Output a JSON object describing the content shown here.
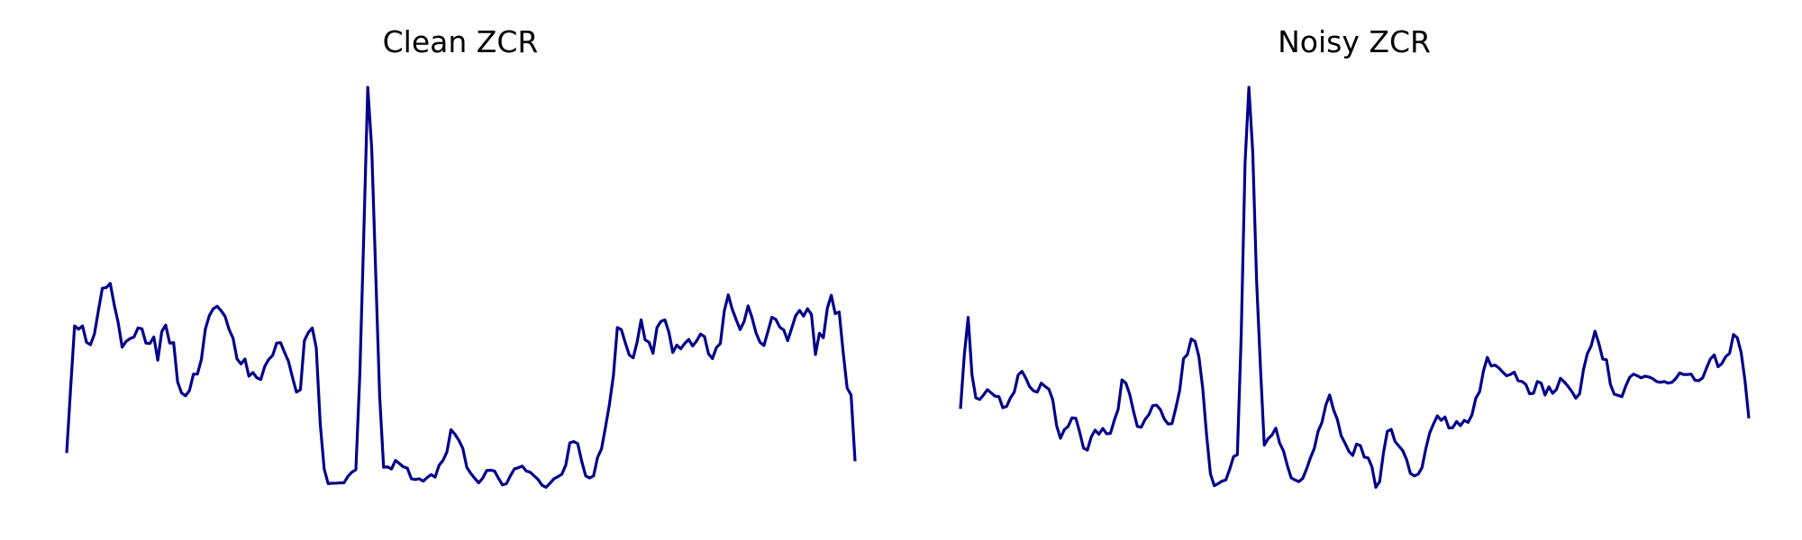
{
  "figure": {
    "background": "#ffffff",
    "line_color": "#00008b"
  },
  "chart_data": [
    {
      "type": "line",
      "title": "Clean ZCR",
      "axes_visible": false,
      "grid": false,
      "ylim": [
        0,
        1
      ],
      "values": [
        0.105,
        0.264,
        0.416,
        0.408,
        0.416,
        0.376,
        0.37,
        0.396,
        0.453,
        0.508,
        0.51,
        0.52,
        0.468,
        0.424,
        0.364,
        0.378,
        0.385,
        0.389,
        0.411,
        0.409,
        0.374,
        0.373,
        0.389,
        0.332,
        0.402,
        0.418,
        0.374,
        0.375,
        0.279,
        0.252,
        0.245,
        0.258,
        0.298,
        0.298,
        0.334,
        0.408,
        0.441,
        0.458,
        0.464,
        0.453,
        0.439,
        0.407,
        0.386,
        0.335,
        0.323,
        0.335,
        0.293,
        0.302,
        0.289,
        0.285,
        0.317,
        0.334,
        0.344,
        0.374,
        0.375,
        0.351,
        0.329,
        0.29,
        0.254,
        0.26,
        0.38,
        0.4,
        0.411,
        0.362,
        0.177,
        0.066,
        0.03,
        0.031,
        0.031,
        0.032,
        0.032,
        0.048,
        0.058,
        0.064,
        0.298,
        0.64,
        1.0,
        0.85,
        0.548,
        0.245,
        0.07,
        0.071,
        0.066,
        0.087,
        0.079,
        0.071,
        0.068,
        0.042,
        0.04,
        0.042,
        0.036,
        0.045,
        0.052,
        0.046,
        0.075,
        0.087,
        0.108,
        0.162,
        0.151,
        0.136,
        0.116,
        0.07,
        0.055,
        0.043,
        0.032,
        0.043,
        0.062,
        0.063,
        0.061,
        0.043,
        0.027,
        0.03,
        0.049,
        0.066,
        0.069,
        0.073,
        0.061,
        0.058,
        0.049,
        0.04,
        0.026,
        0.021,
        0.031,
        0.042,
        0.047,
        0.053,
        0.076,
        0.13,
        0.133,
        0.128,
        0.085,
        0.049,
        0.044,
        0.049,
        0.094,
        0.115,
        0.168,
        0.224,
        0.294,
        0.412,
        0.407,
        0.375,
        0.345,
        0.338,
        0.377,
        0.431,
        0.382,
        0.376,
        0.349,
        0.412,
        0.427,
        0.431,
        0.401,
        0.351,
        0.369,
        0.36,
        0.373,
        0.383,
        0.367,
        0.379,
        0.396,
        0.39,
        0.348,
        0.336,
        0.363,
        0.373,
        0.453,
        0.492,
        0.457,
        0.431,
        0.407,
        0.427,
        0.465,
        0.436,
        0.399,
        0.376,
        0.368,
        0.402,
        0.437,
        0.432,
        0.413,
        0.406,
        0.38,
        0.41,
        0.441,
        0.454,
        0.44,
        0.458,
        0.444,
        0.346,
        0.398,
        0.387,
        0.459,
        0.491,
        0.446,
        0.45,
        0.352,
        0.264,
        0.247,
        0.085
      ],
      "line_color": "#00008b"
    },
    {
      "type": "line",
      "title": "Noisy ZCR",
      "axes_visible": false,
      "grid": false,
      "ylim": [
        0,
        1
      ],
      "values": [
        0.213,
        0.345,
        0.437,
        0.296,
        0.24,
        0.236,
        0.247,
        0.26,
        0.252,
        0.244,
        0.243,
        0.216,
        0.219,
        0.24,
        0.254,
        0.296,
        0.305,
        0.288,
        0.267,
        0.257,
        0.254,
        0.276,
        0.268,
        0.261,
        0.235,
        0.172,
        0.141,
        0.162,
        0.17,
        0.191,
        0.19,
        0.156,
        0.117,
        0.112,
        0.144,
        0.161,
        0.151,
        0.165,
        0.152,
        0.153,
        0.185,
        0.212,
        0.284,
        0.276,
        0.249,
        0.207,
        0.17,
        0.168,
        0.187,
        0.199,
        0.221,
        0.222,
        0.211,
        0.188,
        0.176,
        0.177,
        0.215,
        0.258,
        0.336,
        0.346,
        0.384,
        0.378,
        0.341,
        0.263,
        0.149,
        0.054,
        0.025,
        0.03,
        0.036,
        0.039,
        0.065,
        0.096,
        0.101,
        0.393,
        0.814,
        1.0,
        0.842,
        0.527,
        0.316,
        0.124,
        0.14,
        0.149,
        0.166,
        0.129,
        0.11,
        0.074,
        0.044,
        0.039,
        0.035,
        0.043,
        0.066,
        0.093,
        0.116,
        0.158,
        0.18,
        0.222,
        0.247,
        0.211,
        0.187,
        0.147,
        0.129,
        0.109,
        0.099,
        0.127,
        0.123,
        0.095,
        0.093,
        0.071,
        0.021,
        0.035,
        0.106,
        0.158,
        0.163,
        0.133,
        0.122,
        0.111,
        0.089,
        0.055,
        0.049,
        0.053,
        0.069,
        0.115,
        0.154,
        0.176,
        0.196,
        0.185,
        0.193,
        0.166,
        0.167,
        0.182,
        0.172,
        0.185,
        0.18,
        0.198,
        0.239,
        0.255,
        0.306,
        0.339,
        0.318,
        0.32,
        0.313,
        0.303,
        0.294,
        0.297,
        0.303,
        0.282,
        0.28,
        0.273,
        0.25,
        0.251,
        0.28,
        0.276,
        0.247,
        0.267,
        0.251,
        0.261,
        0.288,
        0.279,
        0.268,
        0.255,
        0.239,
        0.25,
        0.309,
        0.348,
        0.367,
        0.403,
        0.373,
        0.335,
        0.333,
        0.273,
        0.249,
        0.246,
        0.243,
        0.269,
        0.29,
        0.298,
        0.294,
        0.289,
        0.293,
        0.291,
        0.287,
        0.28,
        0.278,
        0.28,
        0.276,
        0.278,
        0.287,
        0.301,
        0.297,
        0.297,
        0.298,
        0.283,
        0.282,
        0.289,
        0.313,
        0.335,
        0.345,
        0.316,
        0.324,
        0.341,
        0.349,
        0.395,
        0.387,
        0.351,
        0.282,
        0.19
      ]
    }
  ]
}
